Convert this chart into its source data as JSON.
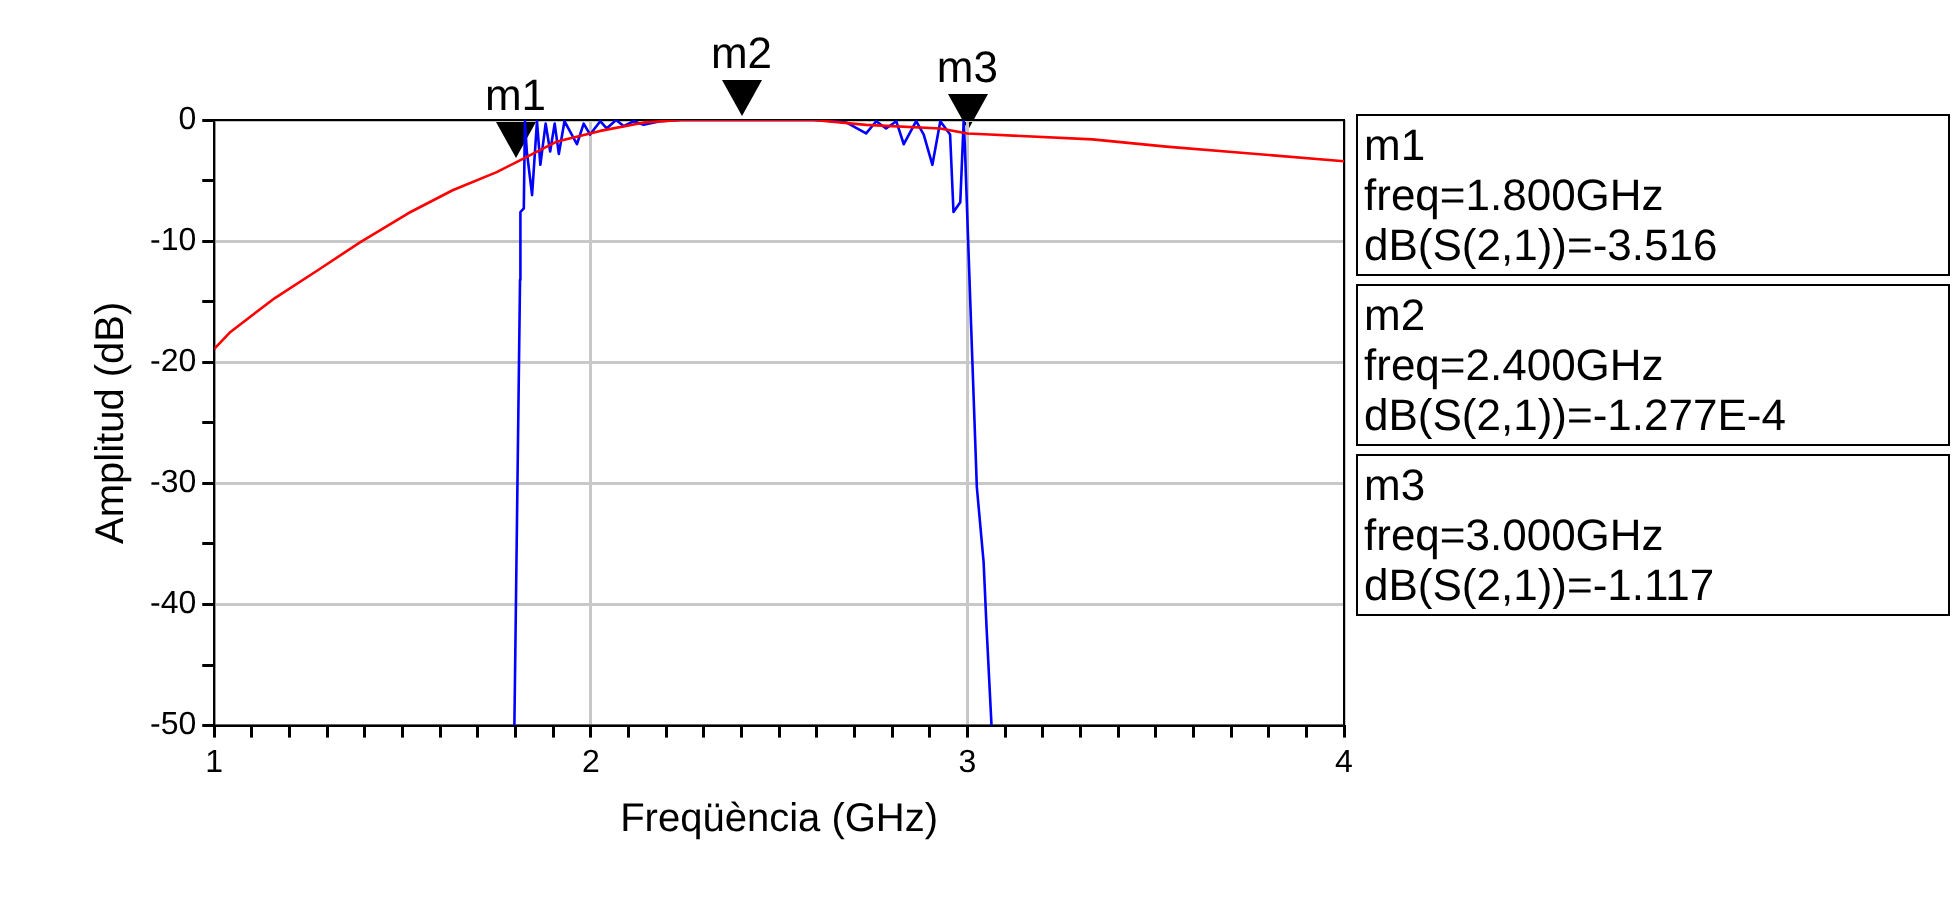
{
  "chart_data": {
    "type": "line",
    "xlabel": "Freqüència (GHz)",
    "ylabel": "Amplitud (dB)",
    "xlim": [
      1,
      4
    ],
    "xticks": [
      1,
      {
        "value": 1.1,
        "label": null
      },
      {
        "value": 1.2,
        "label": null
      },
      {
        "value": 1.3,
        "label": null
      },
      {
        "value": 1.4,
        "label": null
      },
      {
        "value": 1.5,
        "label": null
      },
      {
        "value": 1.6,
        "label": null
      },
      {
        "value": 1.7,
        "label": null
      },
      {
        "value": 1.8,
        "label": null
      },
      {
        "value": 1.9,
        "label": null
      },
      2,
      {
        "value": 2.1,
        "label": null
      },
      {
        "value": 2.2,
        "label": null
      },
      {
        "value": 2.3,
        "label": null
      },
      {
        "value": 2.4,
        "label": null
      },
      {
        "value": 2.5,
        "label": null
      },
      {
        "value": 2.6,
        "label": null
      },
      {
        "value": 2.7,
        "label": null
      },
      {
        "value": 2.8,
        "label": null
      },
      {
        "value": 2.9,
        "label": null
      },
      3,
      {
        "value": 3.1,
        "label": null
      },
      {
        "value": 3.2,
        "label": null
      },
      {
        "value": 3.3,
        "label": null
      },
      {
        "value": 3.4,
        "label": null
      },
      {
        "value": 3.5,
        "label": null
      },
      {
        "value": 3.6,
        "label": null
      },
      {
        "value": 3.7,
        "label": null
      },
      {
        "value": 3.8,
        "label": null
      },
      {
        "value": 3.9,
        "label": null
      },
      4
    ],
    "ylim": [
      -50,
      0
    ],
    "yticks": [
      -50,
      {
        "value": -45,
        "label": null
      },
      -40,
      {
        "value": -35,
        "label": null
      },
      -30,
      {
        "value": -25,
        "label": null
      },
      -20,
      {
        "value": -15,
        "label": null
      },
      -10,
      {
        "value": -5,
        "label": null
      },
      0
    ],
    "grid": true,
    "legend": false,
    "marker": "none",
    "line_style": "solid",
    "series": [
      {
        "color": "#ff0000",
        "x": [
          1.0,
          1.043,
          1.161,
          1.28,
          1.387,
          1.515,
          1.633,
          1.75,
          1.8,
          1.908,
          2.025,
          2.142,
          2.241,
          2.4,
          2.593,
          2.731,
          2.928,
          3.0,
          3.059,
          3.332,
          3.528,
          3.727,
          4.0
        ],
        "values": [
          -18.9,
          -17.5,
          -14.7,
          -12.3,
          -10.1,
          -7.7,
          -5.8,
          -4.3,
          -3.516,
          -1.8,
          -0.9,
          -0.2,
          0,
          0,
          0,
          -0.4,
          -0.7,
          -1.117,
          -1.2,
          -1.6,
          -2.2,
          -2.7,
          -3.4
        ]
      },
      {
        "color": "#0000ff",
        "x": [
          1.797,
          1.812,
          1.813,
          1.822,
          1.825,
          1.83,
          1.844,
          1.857,
          1.866,
          1.88,
          1.892,
          1.904,
          1.915,
          1.93,
          1.963,
          1.981,
          1.998,
          2.025,
          2.042,
          2.067,
          2.087,
          2.114,
          2.14,
          2.184,
          2.237,
          2.592,
          2.645,
          2.678,
          2.731,
          2.758,
          2.784,
          2.811,
          2.831,
          2.864,
          2.884,
          2.907,
          2.928,
          2.954,
          2.963,
          2.981,
          2.99,
          2.993,
          3.013,
          3.025,
          3.043,
          3.051,
          3.064
        ],
        "values": [
          -50,
          -13.2,
          -7.6,
          -7.3,
          -0.1,
          -2.6,
          -6.2,
          -0.1,
          -3.7,
          -0.3,
          -2.6,
          -0.3,
          -2.8,
          -0.1,
          -2.0,
          -0.3,
          -1.2,
          -0.1,
          -0.7,
          0,
          -0.5,
          -0.1,
          -0.4,
          -0.1,
          0,
          0,
          -0.1,
          -0.2,
          -1.1,
          -0.1,
          -0.7,
          -0.1,
          -2.0,
          -0.1,
          -1.2,
          -3.7,
          -0.1,
          -1.2,
          -7.6,
          -6.8,
          -0.1,
          -2.0,
          -19.8,
          -30.3,
          -36.5,
          -42,
          -50
        ]
      }
    ],
    "annotations": [
      {
        "text": "m1",
        "x": 1.8,
        "y": -3.516
      },
      {
        "text": "m2",
        "x": 2.4,
        "y": 0
      },
      {
        "text": "m3",
        "x": 3.0,
        "y": -1.117
      },
      "m1\nfreq=1.800GHz\ndB(S(2,1))=-3.516",
      "m2\nfreq=2.400GHz\ndB(S(2,1))=-1.277E-4",
      "m3\nfreq=3.000GHz\ndB(S(2,1))=-1.117"
    ]
  }
}
